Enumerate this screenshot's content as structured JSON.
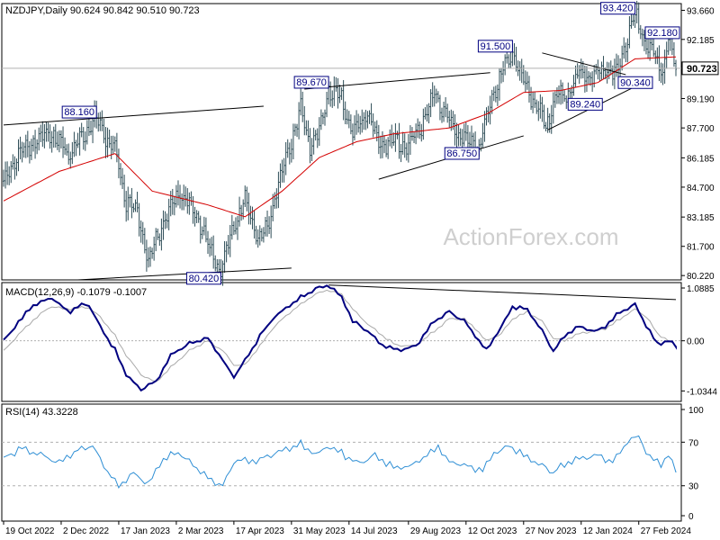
{
  "colors": {
    "background": "#ffffff",
    "frame": "#000000",
    "candle": "#2e4d57",
    "ma": "#d40000",
    "macd": "#000080",
    "signal": "#a9a9a9",
    "rsi": "#2f8fd5",
    "trendline": "#000000",
    "label_border": "#000080",
    "watermark": "#cfcfcf",
    "dotted": "#b0b0b0"
  },
  "chart_data": [
    {
      "type": "candlestick",
      "title": "NZDJPY,Daily  90.624 90.842 90.510 90.723",
      "watermark": "ActionForex.com",
      "yaxis": {
        "ticks": [
          "93.660",
          "92.185",
          "90.723",
          "89.190",
          "87.700",
          "86.185",
          "84.700",
          "83.185",
          "81.700",
          "80.220"
        ],
        "values": [
          93.66,
          92.185,
          90.723,
          89.19,
          87.7,
          86.185,
          84.7,
          83.185,
          81.7,
          80.22
        ],
        "ylim": [
          80.0,
          94.0
        ],
        "current": "90.723",
        "current_value": 90.723
      },
      "xaxis": {
        "ticks": [
          "19 Oct 2022",
          "2 Dec 2022",
          "17 Jan 2023",
          "2 Mar 2023",
          "17 Apr 2023",
          "31 May 2023",
          "14 Jul 2023",
          "29 Aug 2023",
          "12 Oct 2023",
          "27 Nov 2023",
          "12 Jan 2024",
          "27 Feb 2024"
        ],
        "bars": 363
      },
      "price_path": [
        [
          0,
          85.0
        ],
        [
          10,
          86.6
        ],
        [
          25,
          87.5
        ],
        [
          35,
          86.4
        ],
        [
          40,
          86.9
        ],
        [
          45,
          87.6
        ],
        [
          50,
          88.16
        ],
        [
          55,
          87.2
        ],
        [
          60,
          86.6
        ],
        [
          66,
          84.0
        ],
        [
          72,
          83.5
        ],
        [
          78,
          81.0
        ],
        [
          86,
          82.9
        ],
        [
          95,
          84.5
        ],
        [
          105,
          83.0
        ],
        [
          112,
          81.3
        ],
        [
          117,
          80.42
        ],
        [
          123,
          82.4
        ],
        [
          130,
          84.1
        ],
        [
          137,
          82.0
        ],
        [
          142,
          82.7
        ],
        [
          147,
          84.6
        ],
        [
          153,
          86.4
        ],
        [
          160,
          88.6
        ],
        [
          165,
          86.8
        ],
        [
          170,
          87.5
        ],
        [
          175,
          89.67
        ],
        [
          182,
          89.1
        ],
        [
          188,
          87.3
        ],
        [
          196,
          88.5
        ],
        [
          202,
          86.9
        ],
        [
          210,
          87.0
        ],
        [
          218,
          86.8
        ],
        [
          225,
          87.8
        ],
        [
          232,
          89.5
        ],
        [
          240,
          88.0
        ],
        [
          245,
          87.3
        ],
        [
          250,
          87.1
        ],
        [
          256,
          86.75
        ],
        [
          262,
          89.0
        ],
        [
          268,
          90.5
        ],
        [
          274,
          91.5
        ],
        [
          280,
          90.0
        ],
        [
          286,
          89.0
        ],
        [
          292,
          87.8
        ],
        [
          298,
          89.4
        ],
        [
          303,
          89.24
        ],
        [
          310,
          90.5
        ],
        [
          318,
          90.3
        ],
        [
          325,
          90.7
        ],
        [
          330,
          90.34
        ],
        [
          335,
          92.0
        ],
        [
          340,
          93.42
        ],
        [
          345,
          92.18
        ],
        [
          350,
          91.4
        ],
        [
          355,
          90.6
        ],
        [
          358,
          92.2
        ],
        [
          362,
          90.723
        ]
      ],
      "ma_path": [
        [
          0,
          84.0
        ],
        [
          30,
          85.5
        ],
        [
          60,
          86.4
        ],
        [
          80,
          84.5
        ],
        [
          110,
          83.8
        ],
        [
          130,
          83.2
        ],
        [
          150,
          84.5
        ],
        [
          170,
          86.2
        ],
        [
          190,
          87.0
        ],
        [
          210,
          87.4
        ],
        [
          240,
          87.7
        ],
        [
          260,
          88.4
        ],
        [
          280,
          89.5
        ],
        [
          300,
          89.6
        ],
        [
          320,
          90.0
        ],
        [
          340,
          91.2
        ],
        [
          362,
          91.3
        ]
      ],
      "trendlines": [
        {
          "from": [
            0,
            87.85
          ],
          "to": [
            140,
            88.8
          ]
        },
        {
          "from": [
            40,
            80.0
          ],
          "to": [
            155,
            80.6
          ]
        },
        {
          "from": [
            162,
            89.67
          ],
          "to": [
            262,
            90.5
          ]
        },
        {
          "from": [
            202,
            85.1
          ],
          "to": [
            280,
            87.3
          ]
        },
        {
          "from": [
            290,
            91.5
          ],
          "to": [
            335,
            90.4
          ]
        },
        {
          "from": [
            293,
            87.6
          ],
          "to": [
            338,
            89.7
          ]
        }
      ],
      "labels": [
        {
          "text": "88.160",
          "bar": 50,
          "value": 88.16,
          "pos": "left-above"
        },
        {
          "text": "80.420",
          "bar": 117,
          "value": 80.42,
          "pos": "left-below"
        },
        {
          "text": "89.670",
          "bar": 175,
          "value": 89.67,
          "pos": "left-above"
        },
        {
          "text": "86.750",
          "bar": 256,
          "value": 86.75,
          "pos": "left-below"
        },
        {
          "text": "91.500",
          "bar": 274,
          "value": 91.5,
          "pos": "left-above"
        },
        {
          "text": "89.240",
          "bar": 303,
          "value": 89.24,
          "pos": "right-below"
        },
        {
          "text": "90.340",
          "bar": 330,
          "value": 90.34,
          "pos": "right-below"
        },
        {
          "text": "93.420",
          "bar": 340,
          "value": 93.42,
          "pos": "left-above"
        },
        {
          "text": "92.180",
          "bar": 345,
          "value": 92.18,
          "pos": "right-above"
        }
      ]
    },
    {
      "type": "line",
      "title": "MACD(12,26,9) -0.1079 -0.1007",
      "yaxis": {
        "ticks": [
          "1.0885",
          "0.00",
          "-1.0344"
        ],
        "values": [
          1.0885,
          0.0,
          -1.0344
        ],
        "ylim": [
          -1.25,
          1.2
        ]
      },
      "series": [
        {
          "name": "MACD",
          "path": [
            [
              0,
              0.0
            ],
            [
              15,
              0.7
            ],
            [
              25,
              0.9
            ],
            [
              35,
              0.6
            ],
            [
              45,
              0.8
            ],
            [
              52,
              0.3
            ],
            [
              60,
              -0.2
            ],
            [
              66,
              -0.7
            ],
            [
              74,
              -1.0
            ],
            [
              82,
              -0.85
            ],
            [
              90,
              -0.3
            ],
            [
              100,
              -0.05
            ],
            [
              110,
              0.05
            ],
            [
              118,
              -0.4
            ],
            [
              124,
              -0.75
            ],
            [
              130,
              -0.4
            ],
            [
              138,
              0.1
            ],
            [
              146,
              0.5
            ],
            [
              153,
              0.7
            ],
            [
              160,
              0.9
            ],
            [
              167,
              1.05
            ],
            [
              175,
              1.15
            ],
            [
              182,
              0.9
            ],
            [
              188,
              0.4
            ],
            [
              196,
              0.2
            ],
            [
              204,
              -0.1
            ],
            [
              212,
              -0.2
            ],
            [
              222,
              -0.1
            ],
            [
              232,
              0.4
            ],
            [
              240,
              0.6
            ],
            [
              248,
              0.4
            ],
            [
              254,
              0.1
            ],
            [
              260,
              -0.2
            ],
            [
              268,
              0.3
            ],
            [
              274,
              0.7
            ],
            [
              282,
              0.65
            ],
            [
              290,
              0.2
            ],
            [
              296,
              -0.2
            ],
            [
              302,
              0.1
            ],
            [
              310,
              0.3
            ],
            [
              318,
              0.2
            ],
            [
              324,
              0.3
            ],
            [
              332,
              0.6
            ],
            [
              340,
              0.75
            ],
            [
              346,
              0.3
            ],
            [
              352,
              -0.05
            ],
            [
              358,
              0.0
            ],
            [
              362,
              -0.11
            ]
          ]
        },
        {
          "name": "Signal",
          "path": [
            [
              0,
              -0.2
            ],
            [
              15,
              0.4
            ],
            [
              25,
              0.7
            ],
            [
              35,
              0.65
            ],
            [
              45,
              0.7
            ],
            [
              52,
              0.5
            ],
            [
              60,
              0.1
            ],
            [
              66,
              -0.3
            ],
            [
              74,
              -0.7
            ],
            [
              82,
              -0.85
            ],
            [
              90,
              -0.55
            ],
            [
              100,
              -0.2
            ],
            [
              110,
              0.0
            ],
            [
              118,
              -0.2
            ],
            [
              124,
              -0.5
            ],
            [
              130,
              -0.5
            ],
            [
              138,
              -0.1
            ],
            [
              146,
              0.3
            ],
            [
              153,
              0.55
            ],
            [
              160,
              0.75
            ],
            [
              167,
              0.95
            ],
            [
              175,
              1.05
            ],
            [
              182,
              0.95
            ],
            [
              188,
              0.65
            ],
            [
              196,
              0.35
            ],
            [
              204,
              0.1
            ],
            [
              212,
              -0.1
            ],
            [
              222,
              -0.1
            ],
            [
              232,
              0.2
            ],
            [
              240,
              0.45
            ],
            [
              248,
              0.45
            ],
            [
              254,
              0.25
            ],
            [
              260,
              0.0
            ],
            [
              268,
              0.15
            ],
            [
              274,
              0.45
            ],
            [
              282,
              0.6
            ],
            [
              290,
              0.4
            ],
            [
              296,
              0.05
            ],
            [
              302,
              0.0
            ],
            [
              310,
              0.15
            ],
            [
              318,
              0.2
            ],
            [
              324,
              0.25
            ],
            [
              332,
              0.45
            ],
            [
              340,
              0.65
            ],
            [
              346,
              0.5
            ],
            [
              352,
              0.15
            ],
            [
              358,
              0.0
            ],
            [
              362,
              -0.1
            ]
          ]
        }
      ],
      "trendline": {
        "from": [
          175,
          1.15
        ],
        "to": [
          362,
          0.85
        ]
      }
    },
    {
      "type": "line",
      "title": "RSI(14) 43.3228",
      "yaxis": {
        "ticks": [
          "100",
          "70",
          "30",
          "0"
        ],
        "values": [
          100,
          70,
          30,
          0
        ],
        "ylim": [
          0,
          100
        ],
        "dotted": [
          70,
          30
        ]
      },
      "series": [
        {
          "name": "RSI",
          "path": [
            [
              0,
              55
            ],
            [
              10,
              65
            ],
            [
              20,
              58
            ],
            [
              30,
              52
            ],
            [
              40,
              62
            ],
            [
              48,
              66
            ],
            [
              55,
              45
            ],
            [
              62,
              30
            ],
            [
              70,
              42
            ],
            [
              78,
              32
            ],
            [
              86,
              55
            ],
            [
              95,
              60
            ],
            [
              105,
              45
            ],
            [
              112,
              35
            ],
            [
              118,
              30
            ],
            [
              125,
              55
            ],
            [
              135,
              52
            ],
            [
              142,
              57
            ],
            [
              150,
              62
            ],
            [
              160,
              68
            ],
            [
              168,
              58
            ],
            [
              175,
              66
            ],
            [
              182,
              60
            ],
            [
              190,
              50
            ],
            [
              200,
              58
            ],
            [
              210,
              47
            ],
            [
              218,
              48
            ],
            [
              226,
              55
            ],
            [
              234,
              66
            ],
            [
              240,
              52
            ],
            [
              250,
              48
            ],
            [
              258,
              44
            ],
            [
              264,
              60
            ],
            [
              272,
              66
            ],
            [
              280,
              58
            ],
            [
              288,
              50
            ],
            [
              296,
              42
            ],
            [
              304,
              52
            ],
            [
              312,
              55
            ],
            [
              320,
              58
            ],
            [
              328,
              52
            ],
            [
              336,
              70
            ],
            [
              342,
              76
            ],
            [
              348,
              55
            ],
            [
              354,
              50
            ],
            [
              358,
              57
            ],
            [
              362,
              43.32
            ]
          ]
        }
      ]
    }
  ]
}
